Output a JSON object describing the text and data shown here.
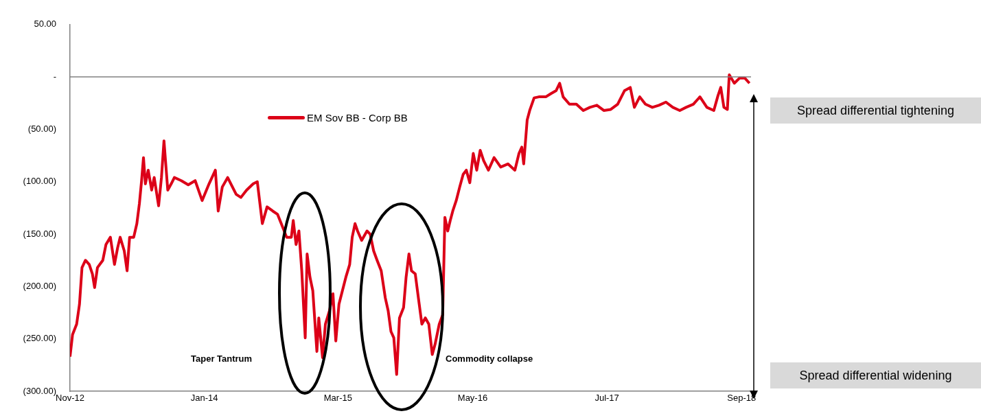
{
  "chart_data": {
    "type": "line",
    "legend": "top left",
    "grid": false,
    "marker": "none",
    "line_style": "solid",
    "xlim": [
      "2012-11-01",
      "2018-10-01"
    ],
    "xticks": [
      {
        "value": "2012-11-01",
        "label": "Nov-12"
      },
      {
        "value": "2014-01-01",
        "label": "Jan-14"
      },
      {
        "value": "2015-03-01",
        "label": "Mar-15"
      },
      {
        "value": "2016-05-01",
        "label": "May-16"
      },
      {
        "value": "2017-07-01",
        "label": "Jul-17"
      },
      {
        "value": "2018-09-01",
        "label": "Sep-18"
      }
    ],
    "ylim": [
      -300,
      50
    ],
    "yticks": [
      {
        "value": -300,
        "label": "(300.00)"
      },
      {
        "value": -250,
        "label": "(250.00)"
      },
      {
        "value": -200,
        "label": "(200.00)"
      },
      {
        "value": -150,
        "label": "(150.00)"
      },
      {
        "value": -100,
        "label": "(100.00)"
      },
      {
        "value": -50,
        "label": "(50.00)"
      },
      {
        "value": 0,
        "label": "-"
      },
      {
        "value": 50,
        "label": "50.00"
      }
    ],
    "ref_lines": [
      {
        "axis": "y",
        "value": 0,
        "color": "#808080"
      }
    ],
    "annotations": [
      "Taper Tantrum",
      "Commodity collapse",
      "Spread differential tightening",
      "Spread differential widening"
    ],
    "series": [
      {
        "name": "EM Sov BB - Corp BB",
        "color": "#dc0018",
        "x": [
          "2012-11-01",
          "2012-11-09",
          "2012-11-22",
          "2012-12-01",
          "2012-12-09",
          "2012-12-20",
          "2013-01-01",
          "2013-01-11",
          "2013-01-18",
          "2013-01-27",
          "2013-02-13",
          "2013-02-23",
          "2013-03-09",
          "2013-03-22",
          "2013-04-01",
          "2013-04-09",
          "2013-04-22",
          "2013-05-01",
          "2013-05-09",
          "2013-05-22",
          "2013-06-01",
          "2013-06-09",
          "2013-06-16",
          "2013-06-22",
          "2013-06-28",
          "2013-07-07",
          "2013-07-18",
          "2013-07-26",
          "2013-08-09",
          "2013-08-18",
          "2013-08-26",
          "2013-09-07",
          "2013-09-18",
          "2013-09-28",
          "2013-10-20",
          "2013-11-11",
          "2013-12-03",
          "2013-12-25",
          "2014-01-16",
          "2014-02-05",
          "2014-02-14",
          "2014-02-27",
          "2014-03-16",
          "2014-04-12",
          "2014-04-27",
          "2014-05-15",
          "2014-06-05",
          "2014-06-18",
          "2014-07-04",
          "2014-07-19",
          "2014-08-06",
          "2014-08-21",
          "2014-09-02",
          "2014-09-19",
          "2014-10-04",
          "2014-10-10",
          "2014-10-19",
          "2014-10-28",
          "2014-11-06",
          "2014-11-17",
          "2014-11-23",
          "2014-12-02",
          "2014-12-11",
          "2014-12-24",
          "2014-12-30",
          "2015-01-11",
          "2015-01-20",
          "2015-02-02",
          "2015-02-13",
          "2015-02-22",
          "2015-03-04",
          "2015-03-15",
          "2015-03-26",
          "2015-04-07",
          "2015-04-15",
          "2015-04-24",
          "2015-05-02",
          "2015-05-15",
          "2015-06-01",
          "2015-06-11",
          "2015-06-22",
          "2015-07-03",
          "2015-07-16",
          "2015-07-29",
          "2015-08-07",
          "2015-08-16",
          "2015-08-25",
          "2015-09-03",
          "2015-09-12",
          "2015-09-25",
          "2015-10-03",
          "2015-10-12",
          "2015-10-20",
          "2015-11-01",
          "2015-11-11",
          "2015-11-22",
          "2015-12-03",
          "2015-12-14",
          "2015-12-25",
          "2016-01-03",
          "2016-01-16",
          "2016-01-27",
          "2016-02-03",
          "2016-02-12",
          "2016-02-20",
          "2016-02-28",
          "2016-03-10",
          "2016-03-21",
          "2016-04-01",
          "2016-04-11",
          "2016-04-22",
          "2016-05-03",
          "2016-05-14",
          "2016-05-25",
          "2016-06-05",
          "2016-06-20",
          "2016-07-08",
          "2016-07-29",
          "2016-08-21",
          "2016-09-12",
          "2016-09-25",
          "2016-10-04",
          "2016-10-10",
          "2016-10-21",
          "2016-10-29",
          "2016-11-12",
          "2016-11-27",
          "2016-12-19",
          "2017-01-04",
          "2017-01-21",
          "2017-02-01",
          "2017-02-12",
          "2017-03-04",
          "2017-03-26",
          "2017-04-17",
          "2017-05-08",
          "2017-05-30",
          "2017-06-21",
          "2017-07-13",
          "2017-08-04",
          "2017-08-26",
          "2017-09-13",
          "2017-09-26",
          "2017-10-13",
          "2017-10-31",
          "2017-11-22",
          "2017-12-13",
          "2018-01-04",
          "2018-01-26",
          "2018-02-17",
          "2018-03-09",
          "2018-04-01",
          "2018-04-22",
          "2018-05-14",
          "2018-06-05",
          "2018-06-18",
          "2018-06-27",
          "2018-07-07",
          "2018-07-18",
          "2018-07-24",
          "2018-08-09",
          "2018-08-26",
          "2018-09-11",
          "2018-09-26"
        ],
        "values": [
          -267,
          -246,
          -236,
          -217,
          -182,
          -175,
          -179,
          -188,
          -201,
          -182,
          -175,
          -160,
          -153,
          -179,
          -163,
          -153,
          -166,
          -185,
          -153,
          -153,
          -140,
          -121,
          -99,
          -77,
          -102,
          -89,
          -108,
          -96,
          -123,
          -96,
          -61,
          -108,
          -102,
          -96,
          -99,
          -103,
          -99,
          -118,
          -102,
          -89,
          -128,
          -105,
          -96,
          -112,
          -115,
          -108,
          -102,
          -100,
          -140,
          -124,
          -128,
          -131,
          -140,
          -153,
          -153,
          -137,
          -160,
          -147,
          -185,
          -249,
          -169,
          -191,
          -204,
          -262,
          -230,
          -268,
          -236,
          -223,
          -207,
          -252,
          -217,
          -204,
          -191,
          -179,
          -153,
          -140,
          -147,
          -156,
          -147,
          -150,
          -166,
          -175,
          -185,
          -211,
          -223,
          -243,
          -249,
          -284,
          -230,
          -220,
          -191,
          -169,
          -185,
          -188,
          -211,
          -236,
          -230,
          -236,
          -265,
          -255,
          -236,
          -227,
          -134,
          -147,
          -137,
          -128,
          -118,
          -105,
          -93,
          -89,
          -101,
          -73,
          -89,
          -70,
          -80,
          -89,
          -77,
          -86,
          -83,
          -89,
          -73,
          -67,
          -83,
          -41,
          -32,
          -20,
          -19,
          -19,
          -16,
          -13,
          -6,
          -19,
          -26,
          -26,
          -32,
          -29,
          -27,
          -32,
          -31,
          -26,
          -13,
          -10,
          -29,
          -19,
          -26,
          -29,
          -27,
          -24,
          -29,
          -32,
          -29,
          -26,
          -19,
          -29,
          -32,
          -18,
          -10,
          -29,
          -31,
          2,
          -6,
          -1,
          -1,
          -6
        ]
      }
    ]
  }
}
